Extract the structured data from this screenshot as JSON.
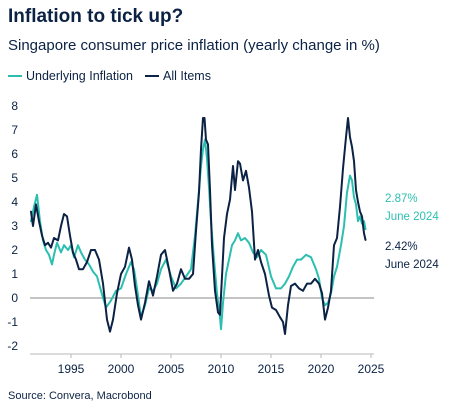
{
  "title": "Inflation to tick up?",
  "subtitle": "Singapore consumer price inflation (yearly change in %)",
  "source": "Source: Convera, Macrobond",
  "colors": {
    "underlying": "#2cbfb0",
    "all_items": "#0b2244",
    "text": "#0b2244",
    "zero_line": "#8a8a8a"
  },
  "annotations": [
    {
      "value_text": "2.87%",
      "date_text": "June 2024",
      "series": "underlying"
    },
    {
      "value_text": "2.42%",
      "date_text": "June 2024",
      "series": "all_items"
    }
  ],
  "chart_data": {
    "type": "line",
    "title": "Inflation to tick up?",
    "subtitle": "Singapore consumer price inflation (yearly change in %)",
    "xlabel": "",
    "ylabel": "",
    "xlim": [
      1990.9,
      2025.3
    ],
    "ylim": [
      -2,
      8
    ],
    "x_ticks": [
      1995,
      2000,
      2005,
      2010,
      2015,
      2020,
      2025
    ],
    "y_ticks": [
      -2,
      -1,
      0,
      1,
      2,
      3,
      4,
      5,
      6,
      7,
      8
    ],
    "legend_position": "top-left",
    "grid": false,
    "series": [
      {
        "name": "Underlying Inflation",
        "color": "#2cbfb0",
        "points": [
          [
            1991.0,
            3.2
          ],
          [
            1991.3,
            3.8
          ],
          [
            1991.6,
            4.3
          ],
          [
            1991.9,
            3.2
          ],
          [
            1992.2,
            2.4
          ],
          [
            1992.5,
            2.0
          ],
          [
            1992.8,
            1.8
          ],
          [
            1993.1,
            1.4
          ],
          [
            1993.3,
            1.8
          ],
          [
            1993.6,
            2.3
          ],
          [
            1994.0,
            1.9
          ],
          [
            1994.3,
            2.2
          ],
          [
            1994.7,
            2.0
          ],
          [
            1995.0,
            2.2
          ],
          [
            1995.3,
            1.7
          ],
          [
            1995.7,
            2.2
          ],
          [
            1996.0,
            1.9
          ],
          [
            1996.4,
            1.6
          ],
          [
            1996.8,
            1.4
          ],
          [
            1997.2,
            1.1
          ],
          [
            1997.6,
            0.9
          ],
          [
            1998.0,
            0.3
          ],
          [
            1998.5,
            -0.4
          ],
          [
            1999.0,
            -0.1
          ],
          [
            1999.5,
            0.3
          ],
          [
            2000.0,
            0.4
          ],
          [
            2000.5,
            1.0
          ],
          [
            2001.0,
            1.5
          ],
          [
            2001.3,
            1.2
          ],
          [
            2001.6,
            0.4
          ],
          [
            2002.0,
            -0.8
          ],
          [
            2002.4,
            -0.3
          ],
          [
            2002.8,
            0.4
          ],
          [
            2003.2,
            0.3
          ],
          [
            2003.6,
            0.6
          ],
          [
            2004.0,
            1.2
          ],
          [
            2004.5,
            1.6
          ],
          [
            2005.0,
            0.9
          ],
          [
            2005.5,
            0.4
          ],
          [
            2006.0,
            0.6
          ],
          [
            2006.5,
            0.9
          ],
          [
            2007.0,
            1.2
          ],
          [
            2007.4,
            2.6
          ],
          [
            2007.7,
            4.0
          ],
          [
            2008.0,
            5.5
          ],
          [
            2008.2,
            6.2
          ],
          [
            2008.4,
            6.6
          ],
          [
            2008.6,
            5.8
          ],
          [
            2008.8,
            4.6
          ],
          [
            2009.0,
            3.2
          ],
          [
            2009.3,
            1.6
          ],
          [
            2009.6,
            0.2
          ],
          [
            2009.9,
            -0.8
          ],
          [
            2010.0,
            -1.3
          ],
          [
            2010.2,
            -0.2
          ],
          [
            2010.5,
            1.0
          ],
          [
            2010.8,
            1.6
          ],
          [
            2011.1,
            2.2
          ],
          [
            2011.4,
            2.4
          ],
          [
            2011.7,
            2.7
          ],
          [
            2012.0,
            2.4
          ],
          [
            2012.4,
            2.5
          ],
          [
            2012.8,
            2.3
          ],
          [
            2013.2,
            1.9
          ],
          [
            2013.6,
            1.7
          ],
          [
            2014.0,
            2.0
          ],
          [
            2014.5,
            1.8
          ],
          [
            2015.0,
            0.9
          ],
          [
            2015.5,
            0.4
          ],
          [
            2016.0,
            0.4
          ],
          [
            2016.4,
            0.6
          ],
          [
            2016.8,
            0.9
          ],
          [
            2017.2,
            1.3
          ],
          [
            2017.6,
            1.6
          ],
          [
            2018.0,
            1.6
          ],
          [
            2018.5,
            1.8
          ],
          [
            2019.0,
            1.7
          ],
          [
            2019.5,
            1.2
          ],
          [
            2019.8,
            0.8
          ],
          [
            2020.1,
            0.0
          ],
          [
            2020.4,
            -0.3
          ],
          [
            2020.7,
            -0.2
          ],
          [
            2021.0,
            0.2
          ],
          [
            2021.3,
            0.9
          ],
          [
            2021.6,
            1.3
          ],
          [
            2022.0,
            2.2
          ],
          [
            2022.3,
            3.0
          ],
          [
            2022.6,
            4.4
          ],
          [
            2022.9,
            5.1
          ],
          [
            2023.1,
            4.9
          ],
          [
            2023.3,
            4.2
          ],
          [
            2023.5,
            3.9
          ],
          [
            2023.7,
            3.2
          ],
          [
            2023.9,
            3.4
          ],
          [
            2024.1,
            3.1
          ],
          [
            2024.3,
            3.2
          ],
          [
            2024.45,
            2.87
          ]
        ]
      },
      {
        "name": "All Items",
        "color": "#0b2244",
        "points": [
          [
            1991.0,
            3.6
          ],
          [
            1991.2,
            3.0
          ],
          [
            1991.5,
            3.9
          ],
          [
            1991.8,
            3.2
          ],
          [
            1992.1,
            2.6
          ],
          [
            1992.4,
            2.2
          ],
          [
            1992.7,
            2.3
          ],
          [
            1993.0,
            2.1
          ],
          [
            1993.3,
            2.5
          ],
          [
            1993.7,
            2.4
          ],
          [
            1994.0,
            3.0
          ],
          [
            1994.3,
            3.5
          ],
          [
            1994.6,
            3.4
          ],
          [
            1994.9,
            2.6
          ],
          [
            1995.2,
            1.9
          ],
          [
            1995.5,
            1.6
          ],
          [
            1995.8,
            1.2
          ],
          [
            1996.2,
            1.2
          ],
          [
            1996.6,
            1.5
          ],
          [
            1997.0,
            2.0
          ],
          [
            1997.4,
            2.0
          ],
          [
            1997.8,
            1.6
          ],
          [
            1998.2,
            0.6
          ],
          [
            1998.6,
            -0.9
          ],
          [
            1998.9,
            -1.4
          ],
          [
            1999.2,
            -0.9
          ],
          [
            1999.6,
            0.2
          ],
          [
            2000.0,
            1.0
          ],
          [
            2000.4,
            1.3
          ],
          [
            2000.8,
            2.1
          ],
          [
            2001.1,
            1.6
          ],
          [
            2001.4,
            0.5
          ],
          [
            2001.7,
            -0.3
          ],
          [
            2002.0,
            -0.9
          ],
          [
            2002.4,
            -0.2
          ],
          [
            2002.8,
            0.7
          ],
          [
            2003.2,
            0.1
          ],
          [
            2003.6,
            0.9
          ],
          [
            2004.0,
            1.8
          ],
          [
            2004.4,
            2.0
          ],
          [
            2004.8,
            1.2
          ],
          [
            2005.2,
            0.3
          ],
          [
            2005.6,
            0.6
          ],
          [
            2006.0,
            1.2
          ],
          [
            2006.4,
            0.8
          ],
          [
            2006.8,
            0.8
          ],
          [
            2007.2,
            1.0
          ],
          [
            2007.5,
            2.8
          ],
          [
            2007.8,
            4.4
          ],
          [
            2008.0,
            6.2
          ],
          [
            2008.2,
            7.5
          ],
          [
            2008.35,
            7.5
          ],
          [
            2008.5,
            6.6
          ],
          [
            2008.7,
            6.4
          ],
          [
            2008.9,
            4.5
          ],
          [
            2009.1,
            2.2
          ],
          [
            2009.4,
            0.3
          ],
          [
            2009.7,
            -0.6
          ],
          [
            2009.9,
            -0.7
          ],
          [
            2010.1,
            0.9
          ],
          [
            2010.3,
            2.5
          ],
          [
            2010.6,
            3.5
          ],
          [
            2010.9,
            4.1
          ],
          [
            2011.2,
            5.5
          ],
          [
            2011.4,
            4.5
          ],
          [
            2011.7,
            5.7
          ],
          [
            2011.9,
            5.6
          ],
          [
            2012.2,
            4.9
          ],
          [
            2012.5,
            5.3
          ],
          [
            2012.8,
            4.6
          ],
          [
            2013.1,
            3.6
          ],
          [
            2013.4,
            1.6
          ],
          [
            2013.7,
            2.0
          ],
          [
            2014.0,
            1.5
          ],
          [
            2014.4,
            1.0
          ],
          [
            2014.8,
            0.1
          ],
          [
            2015.1,
            -0.4
          ],
          [
            2015.5,
            -0.5
          ],
          [
            2015.9,
            -0.8
          ],
          [
            2016.2,
            -1.0
          ],
          [
            2016.4,
            -1.5
          ],
          [
            2016.7,
            -0.3
          ],
          [
            2017.0,
            0.5
          ],
          [
            2017.4,
            0.6
          ],
          [
            2017.8,
            0.4
          ],
          [
            2018.2,
            0.3
          ],
          [
            2018.6,
            0.6
          ],
          [
            2019.0,
            0.6
          ],
          [
            2019.4,
            0.8
          ],
          [
            2019.8,
            0.6
          ],
          [
            2020.1,
            0.2
          ],
          [
            2020.4,
            -0.9
          ],
          [
            2020.7,
            -0.4
          ],
          [
            2021.0,
            0.3
          ],
          [
            2021.3,
            2.2
          ],
          [
            2021.6,
            2.5
          ],
          [
            2021.9,
            3.8
          ],
          [
            2022.2,
            5.4
          ],
          [
            2022.5,
            6.7
          ],
          [
            2022.7,
            7.5
          ],
          [
            2022.9,
            6.7
          ],
          [
            2023.1,
            6.3
          ],
          [
            2023.3,
            5.7
          ],
          [
            2023.5,
            4.5
          ],
          [
            2023.7,
            4.0
          ],
          [
            2023.9,
            3.6
          ],
          [
            2024.1,
            3.4
          ],
          [
            2024.3,
            2.7
          ],
          [
            2024.45,
            2.42
          ]
        ]
      }
    ]
  }
}
